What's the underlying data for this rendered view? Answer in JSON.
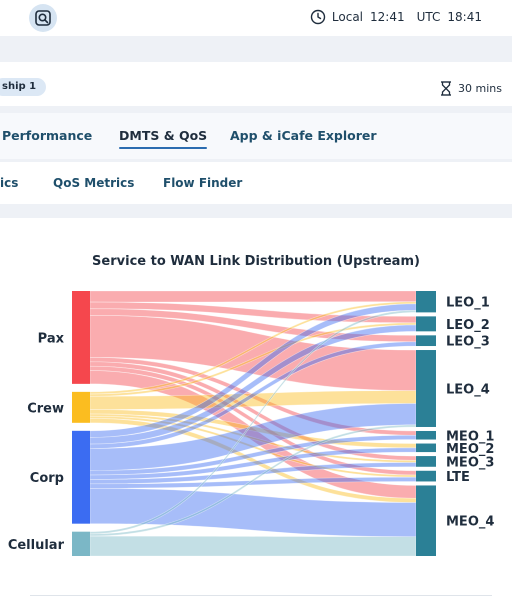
{
  "topbar": {
    "local_label": "Local",
    "local_time": "12:41",
    "utc_label": "UTC",
    "utc_time": "18:41"
  },
  "filters": {
    "chip_label": "ship 1",
    "duration_label": "30 mins"
  },
  "tabs": [
    {
      "label": "Performance",
      "active": false
    },
    {
      "label": "DMTS & QoS",
      "active": true
    },
    {
      "label": "App & iCafe Explorer",
      "active": false
    }
  ],
  "subtabs": [
    {
      "label": "ics"
    },
    {
      "label": "QoS Metrics"
    },
    {
      "label": "Flow Finder"
    }
  ],
  "colors": {
    "accent": "#2b6cb0",
    "pax": "#f5474d",
    "crew": "#fbbd20",
    "corp": "#3b6cf2",
    "cellular": "#7bb7c6",
    "wan_node": "#2b8096"
  },
  "chart_data": {
    "type": "sankey",
    "title": "Service to WAN Link Distribution (Upstream)",
    "sources": [
      "Pax",
      "Crew",
      "Corp",
      "Cellular"
    ],
    "targets": [
      "LEO_1",
      "LEO_2",
      "LEO_3",
      "LEO_4",
      "MEO_1",
      "MEO_2",
      "MEO_3",
      "LTE",
      "MEO_4"
    ],
    "links": [
      {
        "source": "Pax",
        "target": "LEO_1",
        "value": 5
      },
      {
        "source": "Pax",
        "target": "LEO_2",
        "value": 3
      },
      {
        "source": "Pax",
        "target": "LEO_3",
        "value": 3
      },
      {
        "source": "Pax",
        "target": "LEO_4",
        "value": 19
      },
      {
        "source": "Pax",
        "target": "MEO_1",
        "value": 2
      },
      {
        "source": "Pax",
        "target": "MEO_3",
        "value": 2
      },
      {
        "source": "Pax",
        "target": "LTE",
        "value": 2
      },
      {
        "source": "Pax",
        "target": "MEO_4",
        "value": 6
      },
      {
        "source": "Crew",
        "target": "LEO_1",
        "value": 1
      },
      {
        "source": "Crew",
        "target": "LEO_2",
        "value": 1
      },
      {
        "source": "Crew",
        "target": "LEO_4",
        "value": 6
      },
      {
        "source": "Crew",
        "target": "MEO_2",
        "value": 2
      },
      {
        "source": "Crew",
        "target": "MEO_3",
        "value": 1
      },
      {
        "source": "Crew",
        "target": "LTE",
        "value": 1
      },
      {
        "source": "Crew",
        "target": "MEO_4",
        "value": 2
      },
      {
        "source": "Corp",
        "target": "LEO_1",
        "value": 3
      },
      {
        "source": "Corp",
        "target": "LEO_2",
        "value": 3
      },
      {
        "source": "Corp",
        "target": "LEO_3",
        "value": 2
      },
      {
        "source": "Corp",
        "target": "LEO_4",
        "value": 10
      },
      {
        "source": "Corp",
        "target": "MEO_1",
        "value": 2
      },
      {
        "source": "Corp",
        "target": "MEO_2",
        "value": 2
      },
      {
        "source": "Corp",
        "target": "MEO_3",
        "value": 2
      },
      {
        "source": "Corp",
        "target": "LTE",
        "value": 2
      },
      {
        "source": "Corp",
        "target": "MEO_4",
        "value": 16
      },
      {
        "source": "Cellular",
        "target": "LEO_1",
        "value": 1
      },
      {
        "source": "Cellular",
        "target": "LEO_4",
        "value": 1
      },
      {
        "source": "Cellular",
        "target": "MEO_4",
        "value": 9
      }
    ]
  }
}
